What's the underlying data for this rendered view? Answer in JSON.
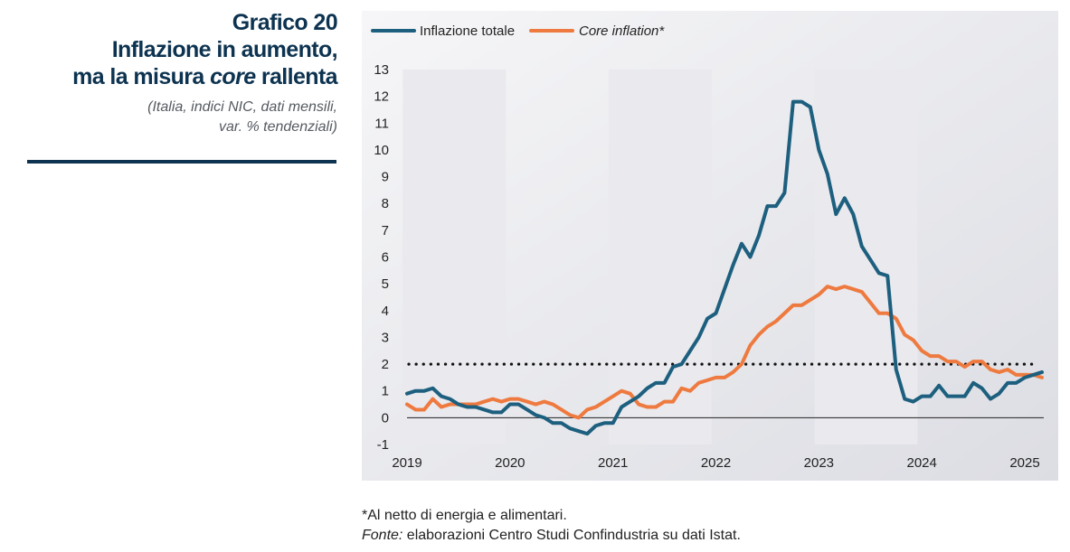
{
  "header": {
    "label": "Grafico 20",
    "title_line1": "Inflazione in aumento,",
    "title_line2_pre": "ma la misura ",
    "title_line2_em": "core",
    "title_line2_post": " rallenta",
    "subtitle_line1": "(Italia, indici NIC, dati mensili,",
    "subtitle_line2": "var. % tendenziali)"
  },
  "footer": {
    "note": "*Al netto di energia e alimentari.",
    "source_label": "Fonte:",
    "source_text": " elaborazioni Centro Studi Confindustria su dati Istat."
  },
  "colors": {
    "total": "#1d5f7e",
    "core": "#ee7a3f",
    "band": "#e9e9ee",
    "threshold": "#111111"
  },
  "chart_data": {
    "type": "line",
    "title": "Inflazione in aumento, ma la misura core rallenta",
    "xlabel": "",
    "ylabel": "",
    "ylim": [
      -1,
      13
    ],
    "yticks": [
      -1,
      0,
      1,
      2,
      3,
      4,
      5,
      6,
      7,
      8,
      9,
      10,
      11,
      12,
      13
    ],
    "xlim": [
      "2019-01",
      "2025-03"
    ],
    "xticks": [
      "2019",
      "2020",
      "2021",
      "2022",
      "2023",
      "2024",
      "2025"
    ],
    "shaded_years": [
      "2019",
      "2021",
      "2023"
    ],
    "reference_line": {
      "y": 2,
      "style": "dotted"
    },
    "legend": {
      "position": "top-left"
    },
    "grid": false,
    "x": [
      "2019-01",
      "2019-02",
      "2019-03",
      "2019-04",
      "2019-05",
      "2019-06",
      "2019-07",
      "2019-08",
      "2019-09",
      "2019-10",
      "2019-11",
      "2019-12",
      "2020-01",
      "2020-02",
      "2020-03",
      "2020-04",
      "2020-05",
      "2020-06",
      "2020-07",
      "2020-08",
      "2020-09",
      "2020-10",
      "2020-11",
      "2020-12",
      "2021-01",
      "2021-02",
      "2021-03",
      "2021-04",
      "2021-05",
      "2021-06",
      "2021-07",
      "2021-08",
      "2021-09",
      "2021-10",
      "2021-11",
      "2021-12",
      "2022-01",
      "2022-02",
      "2022-03",
      "2022-04",
      "2022-05",
      "2022-06",
      "2022-07",
      "2022-08",
      "2022-09",
      "2022-10",
      "2022-11",
      "2022-12",
      "2023-01",
      "2023-02",
      "2023-03",
      "2023-04",
      "2023-05",
      "2023-06",
      "2023-07",
      "2023-08",
      "2023-09",
      "2023-10",
      "2023-11",
      "2023-12",
      "2024-01",
      "2024-02",
      "2024-03",
      "2024-04",
      "2024-05",
      "2024-06",
      "2024-07",
      "2024-08",
      "2024-09",
      "2024-10",
      "2024-11",
      "2024-12",
      "2025-01",
      "2025-02",
      "2025-03"
    ],
    "series": [
      {
        "name": "Inflazione totale",
        "key": "total",
        "values": [
          0.9,
          1.0,
          1.0,
          1.1,
          0.8,
          0.7,
          0.5,
          0.4,
          0.4,
          0.3,
          0.2,
          0.2,
          0.5,
          0.5,
          0.3,
          0.1,
          0.0,
          -0.2,
          -0.2,
          -0.4,
          -0.5,
          -0.6,
          -0.3,
          -0.2,
          -0.2,
          0.4,
          0.6,
          0.8,
          1.1,
          1.3,
          1.3,
          1.9,
          2.0,
          2.5,
          3.0,
          3.7,
          3.9,
          4.8,
          5.7,
          6.5,
          6.0,
          6.8,
          7.9,
          7.9,
          8.4,
          11.8,
          11.8,
          11.6,
          10.0,
          9.1,
          7.6,
          8.2,
          7.6,
          6.4,
          5.9,
          5.4,
          5.3,
          1.8,
          0.7,
          0.6,
          0.8,
          0.8,
          1.2,
          0.8,
          0.8,
          0.8,
          1.3,
          1.1,
          0.7,
          0.9,
          1.3,
          1.3,
          1.5,
          1.6,
          1.7
        ]
      },
      {
        "name": "Core inflation*",
        "key": "core",
        "values": [
          0.5,
          0.3,
          0.3,
          0.7,
          0.4,
          0.5,
          0.5,
          0.5,
          0.5,
          0.6,
          0.7,
          0.6,
          0.7,
          0.7,
          0.6,
          0.5,
          0.6,
          0.5,
          0.3,
          0.1,
          0.0,
          0.3,
          0.4,
          0.6,
          0.8,
          1.0,
          0.9,
          0.5,
          0.4,
          0.4,
          0.6,
          0.6,
          1.1,
          1.0,
          1.3,
          1.4,
          1.5,
          1.5,
          1.7,
          2.0,
          2.7,
          3.1,
          3.4,
          3.6,
          3.9,
          4.2,
          4.2,
          4.4,
          4.6,
          4.9,
          4.8,
          4.9,
          4.8,
          4.7,
          4.3,
          3.9,
          3.9,
          3.7,
          3.1,
          2.9,
          2.5,
          2.3,
          2.3,
          2.1,
          2.1,
          1.9,
          2.1,
          2.1,
          1.8,
          1.7,
          1.8,
          1.6,
          1.6,
          1.6,
          1.5
        ]
      }
    ]
  }
}
